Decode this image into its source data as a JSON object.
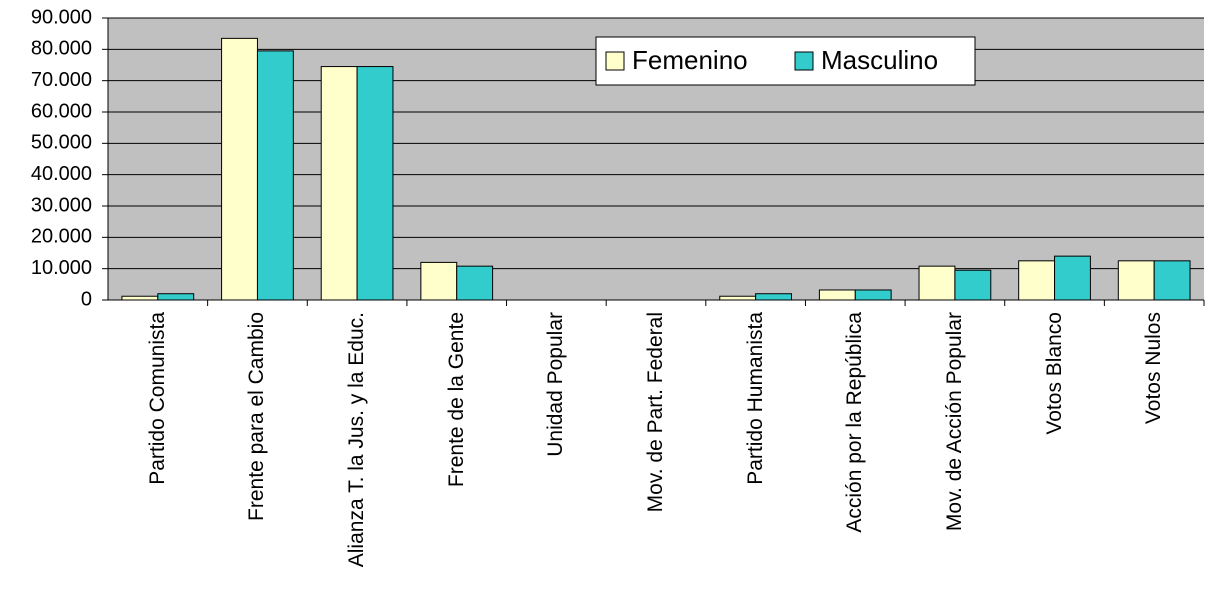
{
  "chart_data": {
    "type": "bar",
    "categories": [
      "Partido Comunista",
      "Frente para el Cambio",
      "Alianza T. la Jus. y la Educ.",
      "Frente de la Gente",
      "Unidad Popular",
      "Mov. de Part. Federal",
      "Partido Humanista",
      "Acción por la República",
      "Mov. de Acción Popular",
      "Votos Blanco",
      "Votos Nulos"
    ],
    "series": [
      {
        "name": "Femenino",
        "color": "#ffffcc",
        "values": [
          1200,
          83500,
          74500,
          12000,
          0,
          0,
          1200,
          3200,
          10800,
          12500,
          12500
        ]
      },
      {
        "name": "Masculino",
        "color": "#33cccc",
        "values": [
          2000,
          79500,
          74500,
          10800,
          0,
          0,
          2000,
          3200,
          9500,
          14000,
          12500
        ]
      }
    ],
    "ylim": [
      0,
      90000
    ],
    "yticks": [
      {
        "value": 0,
        "label": "0"
      },
      {
        "value": 10000,
        "label": "10.000"
      },
      {
        "value": 20000,
        "label": "20.000"
      },
      {
        "value": 30000,
        "label": "30.000"
      },
      {
        "value": 40000,
        "label": "40.000"
      },
      {
        "value": 50000,
        "label": "50.000"
      },
      {
        "value": 60000,
        "label": "60.000"
      },
      {
        "value": 70000,
        "label": "70.000"
      },
      {
        "value": 80000,
        "label": "80.000"
      },
      {
        "value": 90000,
        "label": "90.000"
      }
    ],
    "grid": true
  }
}
